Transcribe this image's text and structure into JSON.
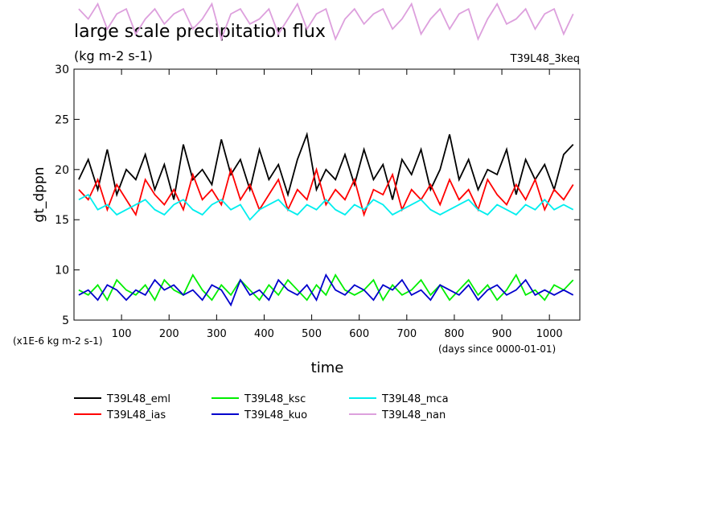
{
  "chart_data": {
    "type": "line",
    "title": "large scale precipitation flux",
    "subtitle": "(kg m-2 s-1)",
    "experiment": "T39L48_3keq",
    "y_label": "gt_dppn",
    "x_label": "time",
    "y_unit_note": "(x1E-6 kg m-2 s-1)",
    "x_unit_note": "(days since 0000-01-01)",
    "xlim": [
      0,
      1064
    ],
    "ylim": [
      5,
      30
    ],
    "xticks": [
      100,
      200,
      300,
      400,
      500,
      600,
      700,
      800,
      900,
      1000
    ],
    "yticks": [
      5,
      10,
      15,
      20,
      25,
      30
    ],
    "x": [
      10,
      30,
      50,
      70,
      90,
      110,
      130,
      150,
      170,
      190,
      210,
      230,
      250,
      270,
      290,
      310,
      330,
      350,
      370,
      390,
      410,
      430,
      450,
      470,
      490,
      510,
      530,
      550,
      570,
      590,
      610,
      630,
      650,
      670,
      690,
      710,
      730,
      750,
      770,
      790,
      810,
      830,
      850,
      870,
      890,
      910,
      930,
      950,
      970,
      990,
      1010,
      1030,
      1050
    ],
    "series": [
      {
        "name": "T39L48_eml",
        "color": "#000000",
        "values": [
          19,
          21,
          18,
          22,
          17.5,
          20,
          19,
          21.5,
          18,
          20.5,
          17,
          22.5,
          19,
          20,
          18.5,
          23,
          19.5,
          21,
          18,
          22,
          19,
          20.5,
          17.5,
          21,
          23.5,
          18,
          20,
          19,
          21.5,
          18.5,
          22,
          19,
          20.5,
          17,
          21,
          19.5,
          22,
          18,
          20,
          23.5,
          19,
          21,
          18,
          20,
          19.5,
          22,
          17.5,
          21,
          19,
          20.5,
          18,
          21.5,
          22.5
        ]
      },
      {
        "name": "T39L48_ias",
        "color": "#ff0000",
        "values": [
          18,
          17,
          19,
          16,
          18.5,
          17,
          15.5,
          19,
          17.5,
          16.5,
          18,
          16,
          19.5,
          17,
          18,
          16.5,
          20,
          17,
          18.5,
          16,
          17.5,
          19,
          16,
          18,
          17,
          20,
          16.5,
          18,
          17,
          19,
          15.5,
          18,
          17.5,
          19.5,
          16,
          18,
          17,
          18.5,
          16.5,
          19,
          17,
          18,
          16,
          19,
          17.5,
          16.5,
          18.5,
          17,
          19,
          16,
          18,
          17,
          18.5
        ]
      },
      {
        "name": "T39L48_ksc",
        "color": "#00ee00",
        "values": [
          8,
          7.5,
          8.5,
          7,
          9,
          8,
          7.5,
          8.5,
          7,
          9,
          8,
          7.5,
          9.5,
          8,
          7,
          8.5,
          7.5,
          9,
          8,
          7,
          8.5,
          7.5,
          9,
          8,
          7,
          8.5,
          7.5,
          9.5,
          8,
          7.5,
          8,
          9,
          7,
          8.5,
          7.5,
          8,
          9,
          7.5,
          8.5,
          7,
          8,
          9,
          7.5,
          8.5,
          7,
          8,
          9.5,
          7.5,
          8,
          7,
          8.5,
          8,
          9
        ]
      },
      {
        "name": "T39L48_kuo",
        "color": "#0000cc",
        "values": [
          7.5,
          8,
          7,
          8.5,
          8,
          7,
          8,
          7.5,
          9,
          8,
          8.5,
          7.5,
          8,
          7,
          8.5,
          8,
          6.5,
          9,
          7.5,
          8,
          7,
          9,
          8,
          7.5,
          8.5,
          7,
          9.5,
          8,
          7.5,
          8.5,
          8,
          7,
          8.5,
          8,
          9,
          7.5,
          8,
          7,
          8.5,
          8,
          7.5,
          8.5,
          7,
          8,
          8.5,
          7.5,
          8,
          9,
          7.5,
          8,
          7.5,
          8,
          7.5
        ]
      },
      {
        "name": "T39L48_mca",
        "color": "#00eeee",
        "values": [
          17,
          17.5,
          16,
          16.5,
          15.5,
          16,
          16.5,
          17,
          16,
          15.5,
          16.5,
          17,
          16,
          15.5,
          16.5,
          17,
          16,
          16.5,
          15,
          16,
          16.5,
          17,
          16,
          15.5,
          16.5,
          16,
          17,
          16,
          15.5,
          16.5,
          16,
          17,
          16.5,
          15.5,
          16,
          16.5,
          17,
          16,
          15.5,
          16,
          16.5,
          17,
          16,
          15.5,
          16.5,
          16,
          15.5,
          16.5,
          16,
          17,
          16,
          16.5,
          16
        ]
      },
      {
        "name": "T39L48_nan",
        "color": "#dda0dd",
        "values": [
          36,
          35,
          36.5,
          34,
          35.5,
          36,
          33.5,
          35,
          36,
          34.5,
          35.5,
          36,
          34,
          35,
          36.5,
          33,
          35.5,
          36,
          34.5,
          35,
          36,
          33.5,
          35,
          36.5,
          34,
          35.5,
          36,
          33,
          35,
          36,
          34.5,
          35.5,
          36,
          34,
          35,
          36.5,
          33.5,
          35,
          36,
          34,
          35.5,
          36,
          33,
          35,
          36.5,
          34.5,
          35,
          36,
          34,
          35.5,
          36,
          33.5,
          35.5
        ]
      }
    ]
  }
}
